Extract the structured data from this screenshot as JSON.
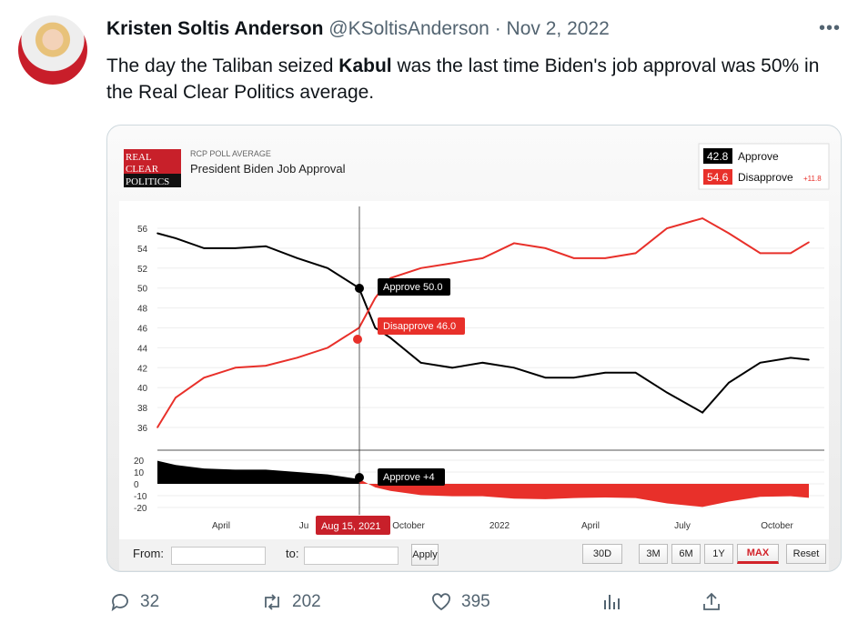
{
  "tweet": {
    "author_name": "Kristen Soltis Anderson",
    "handle": "@KSoltisAnderson",
    "separator": "·",
    "date": "Nov 2, 2022",
    "more_icon": "more-icon",
    "text_before": "The day the Taliban seized ",
    "text_bold": "Kabul",
    "text_after": " was the last time Biden's job approval was 50% in the Real Clear Politics average.",
    "actions": {
      "replies": "32",
      "retweets": "202",
      "likes": "395"
    }
  },
  "chart_card": {
    "logo_text": [
      "REAL",
      "CLEAR",
      "POLITICS"
    ],
    "kicker": "RCP POLL AVERAGE",
    "title": "President Biden Job Approval",
    "legend": {
      "approve_value": "42.8",
      "approve_label": "Approve",
      "disapprove_value": "54.6",
      "disapprove_label": "Disapprove",
      "spread": "+11.8"
    },
    "tooltips": {
      "approve": "Approve 50.0",
      "disapprove": "Disapprove 46.0",
      "spread": "Approve +4",
      "date": "Aug 15, 2021"
    },
    "toolbar": {
      "from_label": "From:",
      "to_label": "to:",
      "apply": "Apply",
      "ranges": [
        "30D",
        "3M",
        "6M",
        "1Y",
        "MAX",
        "Reset"
      ],
      "active_range": "MAX"
    }
  },
  "chart_data": {
    "type": "line",
    "colors": {
      "approve": "#000000",
      "disapprove": "#e8302a"
    },
    "ylim": [
      35,
      57
    ],
    "yticks": [
      56,
      54,
      52,
      50,
      48,
      46,
      44,
      42,
      40,
      38,
      36
    ],
    "spread_ylim": [
      -22,
      22
    ],
    "spread_yticks": [
      "20",
      "10",
      "0",
      "-10",
      "-20"
    ],
    "xticks": [
      "April",
      "Ju",
      "October",
      "2022",
      "April",
      "July",
      "October"
    ],
    "marker_date": "2021-08-15",
    "x": [
      "2021-01-28",
      "2021-02-15",
      "2021-03-15",
      "2021-04-15",
      "2021-05-15",
      "2021-06-15",
      "2021-07-15",
      "2021-08-15",
      "2021-08-31",
      "2021-09-15",
      "2021-10-15",
      "2021-11-15",
      "2021-12-15",
      "2022-01-15",
      "2022-02-15",
      "2022-03-15",
      "2022-04-15",
      "2022-05-15",
      "2022-06-15",
      "2022-07-20",
      "2022-08-15",
      "2022-09-15",
      "2022-10-15",
      "2022-11-02"
    ],
    "series": [
      {
        "name": "Approve",
        "values": [
          55.5,
          55,
          54,
          54,
          54.2,
          53,
          52,
          50,
          46,
          45,
          42.5,
          42,
          42.5,
          42,
          41,
          41,
          41.5,
          41.5,
          39.5,
          37.5,
          40.5,
          42.5,
          43,
          42.8
        ]
      },
      {
        "name": "Disapprove",
        "values": [
          36,
          39,
          41,
          42,
          42.2,
          43,
          44,
          46,
          49,
          51,
          52,
          52.5,
          53,
          54.5,
          54,
          53,
          53,
          53.5,
          56,
          57,
          55.5,
          53.5,
          53.5,
          54.6
        ]
      }
    ]
  }
}
